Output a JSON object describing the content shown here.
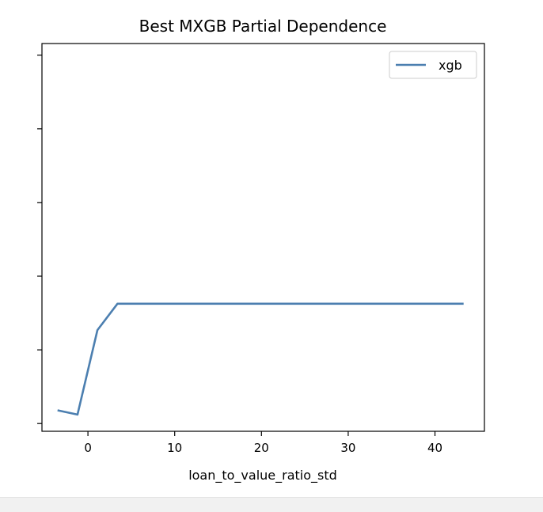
{
  "chart_data": {
    "type": "line",
    "title": "Best MXGB Partial Dependence",
    "xlabel": "loan_to_value_ratio_std",
    "ylabel": "",
    "xlim": [
      -5.3,
      45.7
    ],
    "ylim": [
      0,
      1
    ],
    "x_ticks": [
      0,
      10,
      20,
      30,
      40
    ],
    "x_tick_labels": [
      "0",
      "10",
      "20",
      "30",
      "40"
    ],
    "y_ticks": [
      0.02,
      0.21,
      0.4,
      0.59,
      0.78,
      0.97
    ],
    "y_tick_labels": [
      "",
      "",
      "",
      "",
      "",
      ""
    ],
    "grid": false,
    "legend": {
      "position": "upper-right",
      "entries": [
        "xgb"
      ]
    },
    "series": [
      {
        "name": "xgb",
        "color": "#4c7fb0",
        "x": [
          -3.5,
          -1.2,
          1.1,
          3.4,
          43.3
        ],
        "y": [
          0.054,
          0.043,
          0.261,
          0.329,
          0.329
        ]
      }
    ]
  }
}
